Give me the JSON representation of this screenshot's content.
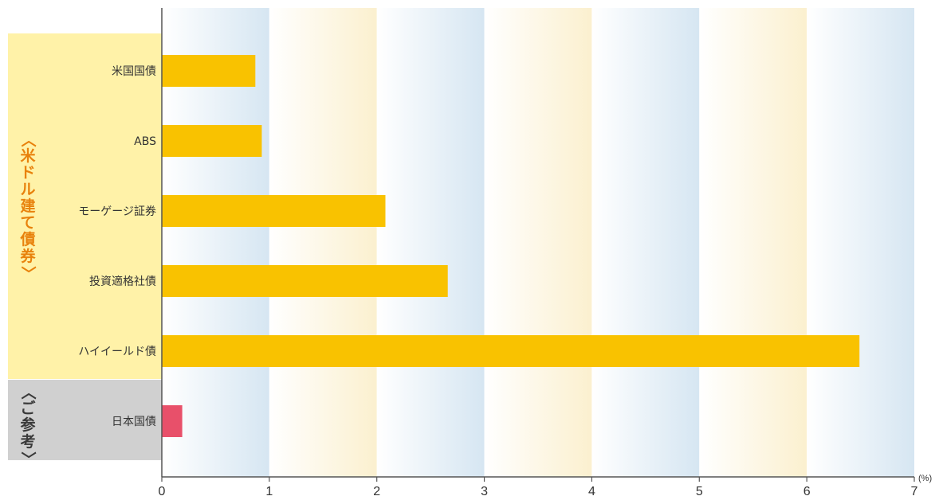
{
  "chart_data": {
    "type": "bar",
    "orientation": "horizontal",
    "categories": [
      "米国国債",
      "ABS",
      "モーゲージ証券",
      "投資適格社債",
      "ハイイールド債",
      "日本国債"
    ],
    "values": [
      0.87,
      0.93,
      2.08,
      2.66,
      6.49,
      0.19
    ],
    "groups": [
      {
        "label": "〈米ドル建て債券〉",
        "categories": [
          "米国国債",
          "ABS",
          "モーゲージ証券",
          "投資適格社債",
          "ハイイールド債"
        ]
      },
      {
        "label": "〈ご参考〉",
        "categories": [
          "日本国債"
        ]
      }
    ],
    "x_ticks": [
      "0",
      "1",
      "2",
      "3",
      "4",
      "5",
      "6",
      "7"
    ],
    "xlim": [
      0,
      7
    ],
    "x_unit": "(%)",
    "colors": {
      "usd_bar": "#f9c200",
      "ref_bar": "#e8506a",
      "usd_group_bg": "#fff2a8",
      "ref_group_bg": "#d0d0d0",
      "band_blue": "#d6e6f2",
      "band_cream": "#fbf0cf",
      "usd_group_text": "#e8820c",
      "ref_group_text": "#3a3a3a"
    }
  }
}
